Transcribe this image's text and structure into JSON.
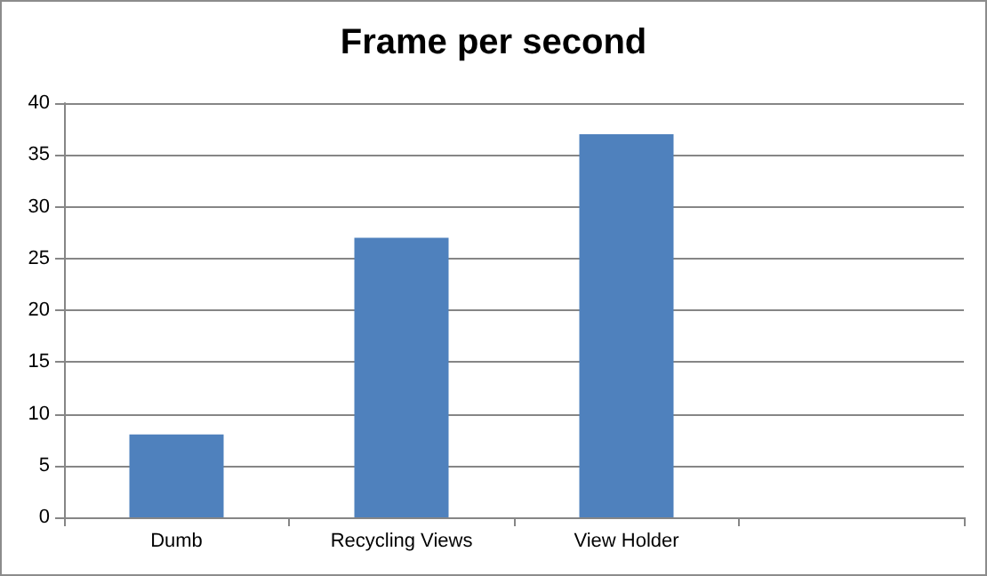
{
  "chart_data": {
    "type": "bar",
    "title": "Frame per second",
    "categories": [
      "Dumb",
      "Recycling Views",
      "View Holder",
      null
    ],
    "values": [
      8,
      27,
      37,
      null
    ],
    "color": "#4f81bd",
    "ylim": [
      0,
      40
    ],
    "yticks": [
      0,
      5,
      10,
      15,
      20,
      25,
      30,
      35,
      40
    ],
    "grid": "y"
  }
}
